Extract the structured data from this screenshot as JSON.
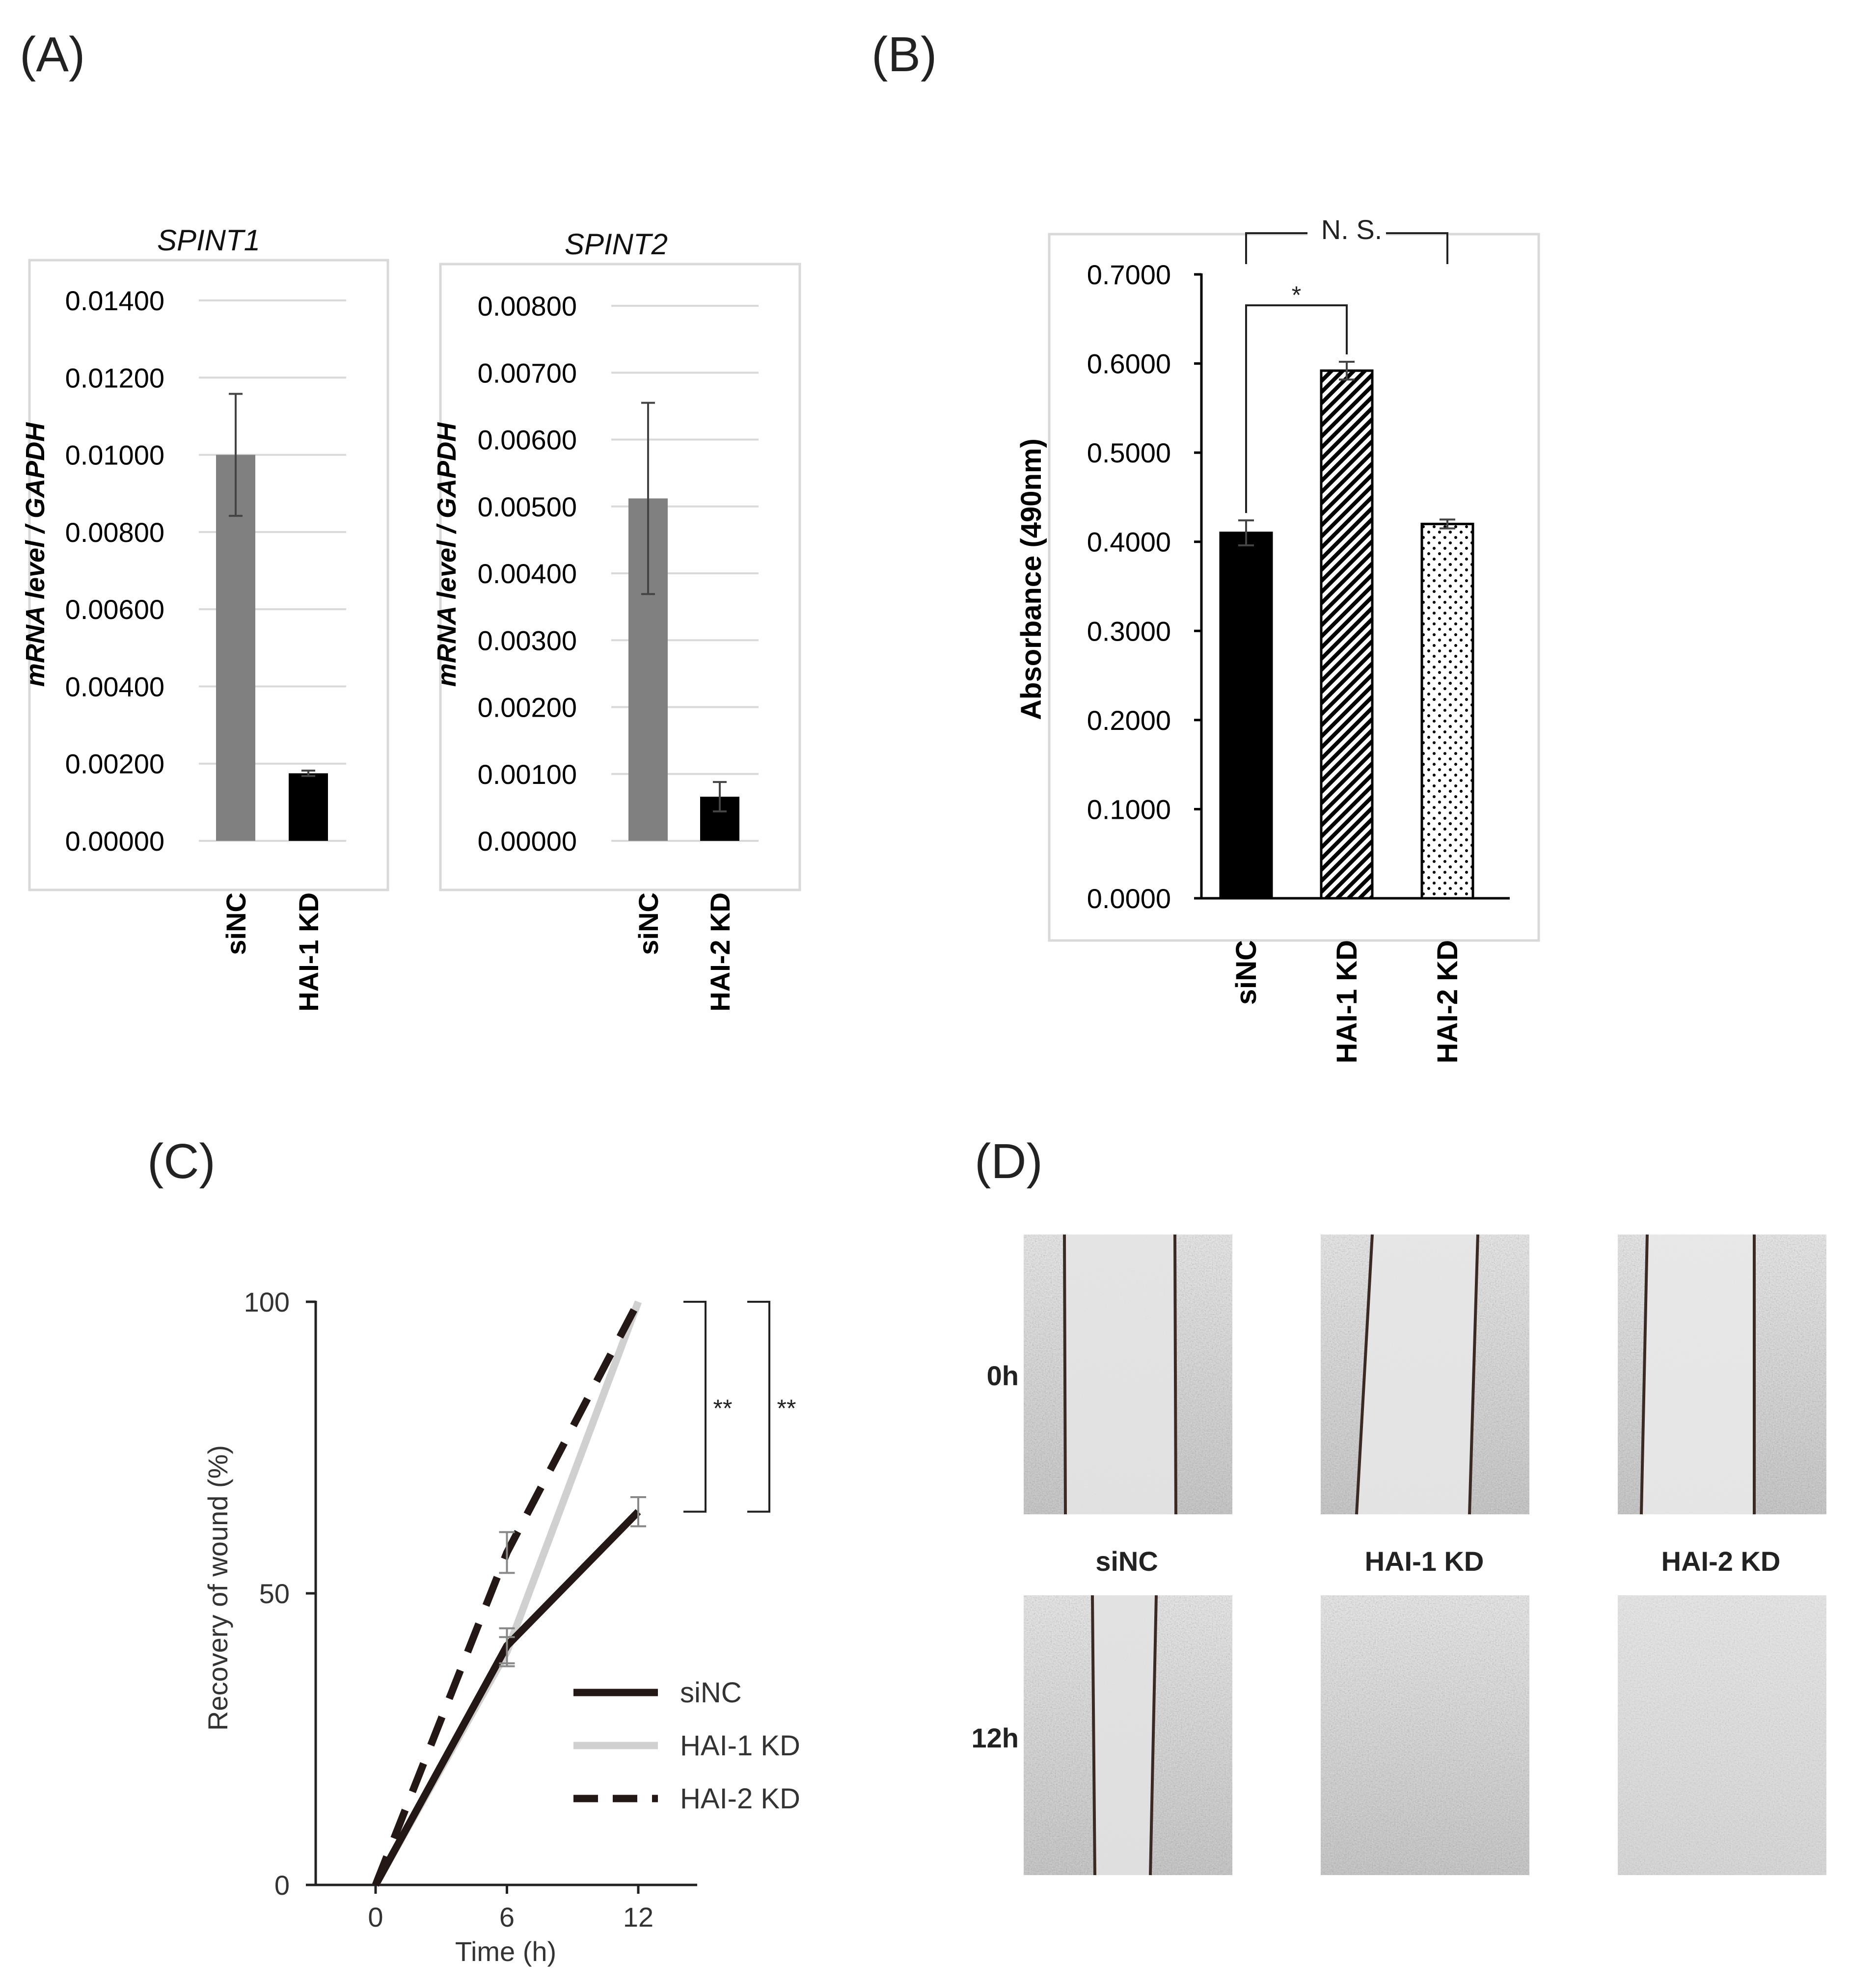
{
  "panels": {
    "A": "(A)",
    "B": "(B)",
    "C": "(C)",
    "D": "(D)"
  },
  "colors": {
    "gray_bar": "#808080",
    "black_bar": "#000000",
    "grid": "#d9d9d9",
    "frame": "#d9d9d9",
    "hai1_line": "#d0d0d0",
    "sinc_line": "#231815",
    "hai2_line": "#231815"
  },
  "chart_data": [
    {
      "id": "A1",
      "type": "bar",
      "title": "SPINT1",
      "ylabel": "mRNA level / GAPDH",
      "categories": [
        "siNC",
        "HAI-1 KD"
      ],
      "values": [
        0.01,
        0.00175
      ],
      "errors": [
        0.00158,
        7e-05
      ],
      "bar_colors": [
        "#808080",
        "#000000"
      ],
      "ylim": [
        0,
        0.014
      ],
      "yticks": [
        "0.00000",
        "0.00200",
        "0.00400",
        "0.00600",
        "0.00800",
        "0.01000",
        "0.01200",
        "0.01400"
      ],
      "grid": true
    },
    {
      "id": "A2",
      "type": "bar",
      "title": "SPINT2",
      "ylabel": "mRNA level / GAPDH",
      "categories": [
        "siNC",
        "HAI-2 KD"
      ],
      "values": [
        0.00512,
        0.00066
      ],
      "errors": [
        0.00143,
        0.00022
      ],
      "bar_colors": [
        "#808080",
        "#000000"
      ],
      "ylim": [
        0,
        0.008
      ],
      "yticks": [
        "0.00000",
        "0.00100",
        "0.00200",
        "0.00300",
        "0.00400",
        "0.00500",
        "0.00600",
        "0.00700",
        "0.00800"
      ],
      "grid": true
    },
    {
      "id": "B",
      "type": "bar",
      "title": "",
      "ylabel": "Absorbance (490nm)",
      "categories": [
        "siNC",
        "HAI-1 KD",
        "HAI-2 KD"
      ],
      "values": [
        0.41,
        0.592,
        0.42
      ],
      "errors": [
        0.014,
        0.01,
        0.005
      ],
      "patterns": [
        "solid",
        "hatch",
        "dots"
      ],
      "ylim": [
        0,
        0.7
      ],
      "yticks": [
        "0.0000",
        "0.1000",
        "0.2000",
        "0.3000",
        "0.4000",
        "0.5000",
        "0.6000",
        "0.7000"
      ],
      "significance": [
        {
          "from": "siNC",
          "to": "HAI-1 KD",
          "label": "*"
        },
        {
          "from": "siNC",
          "to": "HAI-2 KD",
          "label": "N. S."
        }
      ],
      "grid": false
    },
    {
      "id": "C",
      "type": "line",
      "title": "",
      "xlabel": "Time (h)",
      "ylabel": "Recovery of wound (%)",
      "x": [
        0,
        6,
        12
      ],
      "xticks": [
        "0",
        "6",
        "12"
      ],
      "yticks": [
        "0",
        "50",
        "100"
      ],
      "xlim": [
        -3,
        15
      ],
      "ylim": [
        0,
        100
      ],
      "series": [
        {
          "name": "siNC",
          "values": [
            0,
            41,
            64
          ],
          "errors": [
            0,
            3,
            2.5
          ],
          "style": "solid-dark"
        },
        {
          "name": "HAI-1 KD",
          "values": [
            0,
            40,
            100
          ],
          "errors": [
            0,
            2.5,
            0
          ],
          "style": "solid-light"
        },
        {
          "name": "HAI-2 KD",
          "values": [
            0,
            57,
            100
          ],
          "errors": [
            0,
            3.5,
            0
          ],
          "style": "dashed-dark"
        }
      ],
      "significance": [
        "**",
        "**"
      ],
      "legend": "bottom-right",
      "grid": false
    }
  ],
  "micrographs": {
    "row_labels": [
      "0h",
      "12h"
    ],
    "column_labels": [
      "siNC",
      "HAI-1 KD",
      "HAI-2 KD"
    ]
  }
}
